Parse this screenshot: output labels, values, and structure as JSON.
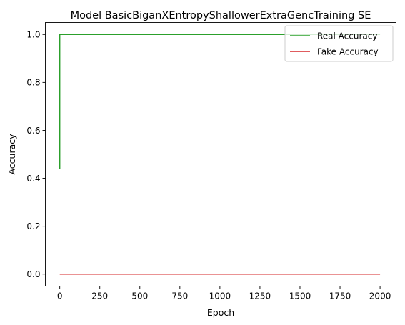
{
  "chart_data": {
    "type": "line",
    "title": "Model BasicBiganXEntropyShallowerExtraGencTraining SE",
    "xlabel": "Epoch",
    "ylabel": "Accuracy",
    "xlim": [
      -90,
      2100
    ],
    "ylim": [
      -0.05,
      1.05
    ],
    "xticks": [
      0,
      250,
      500,
      750,
      1000,
      1250,
      1500,
      1750,
      2000
    ],
    "xtick_labels": [
      "0",
      "250",
      "500",
      "750",
      "1000",
      "1250",
      "1500",
      "1750",
      "2000"
    ],
    "yticks": [
      0.0,
      0.2,
      0.4,
      0.6,
      0.8,
      1.0
    ],
    "ytick_labels": [
      "0.0",
      "0.2",
      "0.4",
      "0.6",
      "0.8",
      "1.0"
    ],
    "grid": false,
    "legend_position": "top-right",
    "series": [
      {
        "name": "Real Accuracy",
        "color": "#2ca02c",
        "x": [
          0,
          1,
          2000
        ],
        "y": [
          0.44,
          1.0,
          1.0
        ]
      },
      {
        "name": "Fake Accuracy",
        "color": "#d62728",
        "x": [
          0,
          2000
        ],
        "y": [
          0.0,
          0.0
        ]
      }
    ]
  }
}
